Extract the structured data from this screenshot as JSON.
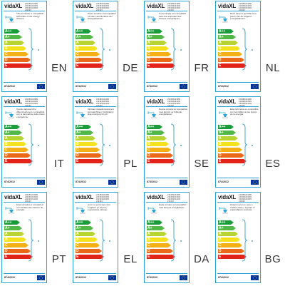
{
  "brand": "vidaXL",
  "regulation": "874/2012",
  "codes": [
    "244380|244389",
    "244393|244393",
    "244393|244393",
    "244393"
  ],
  "classes": [
    {
      "letter": "A++",
      "color": "#1a9c3a"
    },
    {
      "letter": "A+",
      "color": "#51b848"
    },
    {
      "letter": "A",
      "color": "#b8d432"
    },
    {
      "letter": "B",
      "color": "#f4e21e"
    },
    {
      "letter": "C",
      "color": "#f5b016"
    },
    {
      "letter": "D",
      "color": "#ea6a1a"
    },
    {
      "letter": "E",
      "color": "#e2231a"
    }
  ],
  "accent_color": "#2aa4d6",
  "labels": [
    {
      "lang": "EN",
      "text": "This luminaire is compatible with bulbs of the energy classes:"
    },
    {
      "lang": "DE",
      "text": "Diese Leuchte ist kompatibel mit den Leuchtmitteln der Energieklassen:"
    },
    {
      "lang": "FR",
      "text": "Ce luminaire est compatible avec les ampoules des classes énergétiques:"
    },
    {
      "lang": "NL",
      "text": "Deze lamp is geschikt voor peren van de volgend energieklassen:"
    },
    {
      "lang": "IT",
      "text": "Questo apparecchio d'illuminazione è compatibile con le lampadine delle classi energetiche:"
    },
    {
      "lang": "PL",
      "text": "Oprawa oświetleniowa jest kompatybilna z żarówkami klas energetycznych:"
    },
    {
      "lang": "SE",
      "text": "Denna armatur är kompatibel med lampor av följande energiklasser:"
    },
    {
      "lang": "ES",
      "text": "Esta luminaria es compatible con bombillas de las clases de la energía:"
    },
    {
      "lang": "PT",
      "text": "Esta luminária é compatível com bolbas das classes de energia:"
    },
    {
      "lang": "EL",
      "text": "Αυτό το φωτιστικό είναι συμβατό με λάμπες ενεργειακής κλάσης:"
    },
    {
      "lang": "DA",
      "text": "Dette armatur er kompatibel med lamp af energiklasse:"
    },
    {
      "lang": "BG",
      "text": "Осветителното тяло е съвместимо с крушки от енергийните класове:"
    }
  ]
}
